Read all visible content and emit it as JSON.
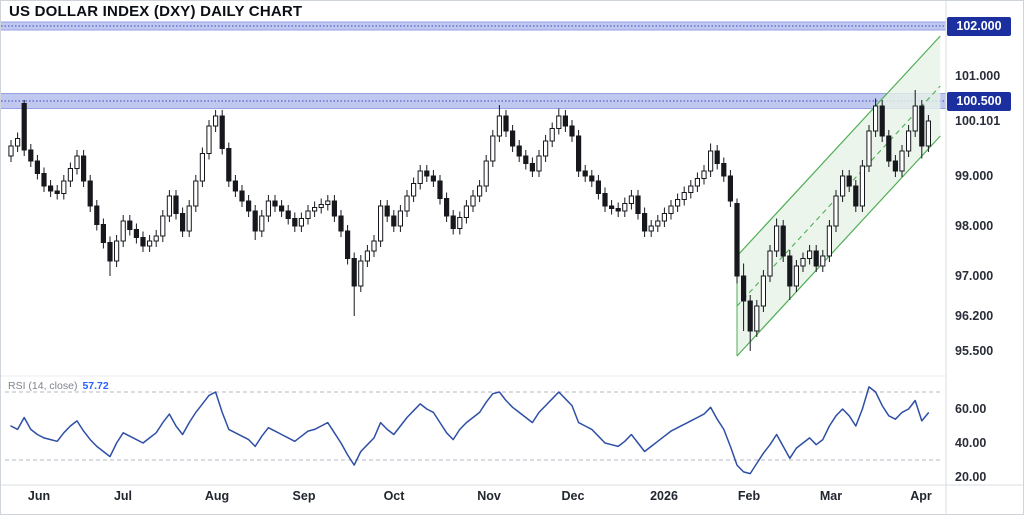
{
  "colors": {
    "background": "#ffffff",
    "candle_outline": "#16181d",
    "candle_up_fill": "#ffffff",
    "candle_down_fill": "#16181d",
    "resistance_band_fill": "#b9c2ee",
    "resistance_band_edge": "#96a2e6",
    "resistance_band_dotted_line": "#5560cc",
    "price_chip_bg": "#1b2f9f",
    "price_chip_text": "#ffffff",
    "channel_fill": "#e7f3e7",
    "channel_line": "#4fae55",
    "rsi_line": "#2e4fa5",
    "rsi_value_text": "#2962ff",
    "rsi_label_text": "#80838e",
    "axis_text": "#2a2e39",
    "dashed_level": "#b7bac4",
    "separator": "#d9dce2",
    "pane_divider": "#ededf1"
  },
  "chart_data": {
    "type": "candlestick",
    "title": "US DOLLAR INDEX (DXY) DAILY CHART",
    "x_axis": {
      "month_labels": [
        {
          "text": "Jun",
          "i": 4.2
        },
        {
          "text": "Jul",
          "i": 17.0
        },
        {
          "text": "Aug",
          "i": 31.2
        },
        {
          "text": "Sep",
          "i": 44.4
        },
        {
          "text": "Oct",
          "i": 58.0
        },
        {
          "text": "Nov",
          "i": 72.4
        },
        {
          "text": "Dec",
          "i": 85.2
        },
        {
          "text": "2026",
          "i": 99.0
        },
        {
          "text": "Feb",
          "i": 111.8
        },
        {
          "text": "Mar",
          "i": 124.2
        },
        {
          "text": "Apr",
          "i": 137.9
        }
      ]
    },
    "price_pane": {
      "ylim": [
        95.1,
        102.5
      ],
      "current_price": 100.101,
      "axis_plain_labels": [
        {
          "text": "101.000",
          "price": 101.0
        },
        {
          "text": "100.101",
          "price": 100.101
        },
        {
          "text": "99.000",
          "price": 99.0
        },
        {
          "text": "98.000",
          "price": 98.0
        },
        {
          "text": "97.000",
          "price": 97.0
        },
        {
          "text": "96.200",
          "price": 96.2
        },
        {
          "text": "95.500",
          "price": 95.5
        }
      ],
      "axis_chip_labels": [
        {
          "text": "102.000",
          "price": 102.0
        },
        {
          "text": "100.500",
          "price": 100.5
        }
      ],
      "resistance_bands": [
        {
          "price": 102.0,
          "half_width": 0.08
        },
        {
          "price": 100.5,
          "half_width": 0.15
        }
      ],
      "ascending_channel": {
        "i_start": 110,
        "i_end": 140.8,
        "lower_price_start": 95.4,
        "lower_price_end": 99.8,
        "price_width": 2.0,
        "midline_dashed": true
      },
      "candles_ohlc": [
        [
          99.4,
          99.72,
          99.28,
          99.6
        ],
        [
          99.6,
          99.87,
          99.48,
          99.75
        ],
        [
          100.45,
          100.52,
          99.4,
          99.52
        ],
        [
          99.52,
          99.64,
          99.18,
          99.3
        ],
        [
          99.3,
          99.42,
          98.93,
          99.05
        ],
        [
          99.05,
          99.17,
          98.68,
          98.8
        ],
        [
          98.8,
          98.92,
          98.58,
          98.7
        ],
        [
          98.7,
          98.82,
          98.53,
          98.65
        ],
        [
          98.65,
          99.02,
          98.53,
          98.9
        ],
        [
          98.9,
          99.27,
          98.78,
          99.15
        ],
        [
          99.15,
          99.52,
          99.03,
          99.4
        ],
        [
          99.4,
          99.52,
          98.78,
          98.9
        ],
        [
          98.9,
          99.02,
          98.28,
          98.4
        ],
        [
          98.4,
          98.52,
          97.91,
          98.03
        ],
        [
          98.03,
          98.15,
          97.55,
          97.67
        ],
        [
          97.67,
          97.79,
          97.0,
          97.3
        ],
        [
          97.3,
          97.82,
          97.18,
          97.7
        ],
        [
          97.7,
          98.22,
          97.58,
          98.1
        ],
        [
          98.1,
          98.22,
          97.81,
          97.93
        ],
        [
          97.93,
          98.05,
          97.65,
          97.77
        ],
        [
          97.77,
          97.89,
          97.48,
          97.6
        ],
        [
          97.6,
          97.82,
          97.48,
          97.7
        ],
        [
          97.7,
          97.92,
          97.58,
          97.8
        ],
        [
          97.8,
          98.32,
          97.68,
          98.2
        ],
        [
          98.2,
          98.72,
          98.08,
          98.6
        ],
        [
          98.6,
          98.72,
          98.13,
          98.25
        ],
        [
          98.25,
          98.37,
          97.78,
          97.9
        ],
        [
          97.9,
          98.52,
          97.78,
          98.4
        ],
        [
          98.4,
          99.02,
          98.28,
          98.9
        ],
        [
          98.9,
          99.57,
          98.78,
          99.45
        ],
        [
          99.45,
          100.12,
          99.33,
          100.0
        ],
        [
          100.0,
          100.32,
          99.88,
          100.2
        ],
        [
          100.2,
          100.32,
          99.43,
          99.55
        ],
        [
          99.55,
          99.67,
          98.78,
          98.9
        ],
        [
          98.9,
          99.02,
          98.58,
          98.7
        ],
        [
          98.7,
          98.82,
          98.38,
          98.5
        ],
        [
          98.5,
          98.62,
          98.18,
          98.3
        ],
        [
          98.3,
          98.42,
          97.72,
          97.9
        ],
        [
          97.9,
          98.32,
          97.78,
          98.2
        ],
        [
          98.2,
          98.62,
          98.08,
          98.5
        ],
        [
          98.5,
          98.62,
          98.28,
          98.4
        ],
        [
          98.4,
          98.52,
          98.18,
          98.3
        ],
        [
          98.3,
          98.42,
          98.03,
          98.15
        ],
        [
          98.15,
          98.27,
          97.88,
          98.0
        ],
        [
          98.0,
          98.27,
          97.88,
          98.15
        ],
        [
          98.15,
          98.42,
          98.03,
          98.3
        ],
        [
          98.3,
          98.49,
          98.18,
          98.37
        ],
        [
          98.37,
          98.55,
          98.25,
          98.43
        ],
        [
          98.43,
          98.62,
          98.31,
          98.5
        ],
        [
          98.5,
          98.62,
          98.08,
          98.2
        ],
        [
          98.2,
          98.32,
          97.78,
          97.9
        ],
        [
          97.9,
          98.02,
          97.23,
          97.35
        ],
        [
          97.35,
          97.47,
          96.2,
          96.8
        ],
        [
          96.8,
          97.42,
          96.68,
          97.3
        ],
        [
          97.3,
          97.62,
          97.18,
          97.5
        ],
        [
          97.5,
          97.82,
          97.38,
          97.7
        ],
        [
          97.7,
          98.52,
          97.58,
          98.4
        ],
        [
          98.4,
          98.52,
          98.08,
          98.2
        ],
        [
          98.2,
          98.32,
          97.88,
          98.0
        ],
        [
          98.0,
          98.42,
          97.88,
          98.3
        ],
        [
          98.3,
          98.72,
          98.18,
          98.6
        ],
        [
          98.6,
          98.97,
          98.48,
          98.85
        ],
        [
          98.85,
          99.22,
          98.73,
          99.1
        ],
        [
          99.1,
          99.22,
          98.88,
          99.0
        ],
        [
          99.0,
          99.12,
          98.78,
          98.9
        ],
        [
          98.9,
          99.02,
          98.43,
          98.55
        ],
        [
          98.55,
          98.67,
          98.08,
          98.2
        ],
        [
          98.2,
          98.32,
          97.83,
          97.95
        ],
        [
          97.95,
          98.29,
          97.83,
          98.17
        ],
        [
          98.17,
          98.52,
          98.05,
          98.4
        ],
        [
          98.4,
          98.72,
          98.28,
          98.6
        ],
        [
          98.6,
          98.92,
          98.48,
          98.8
        ],
        [
          98.8,
          99.42,
          98.68,
          99.3
        ],
        [
          99.3,
          99.92,
          99.18,
          99.8
        ],
        [
          99.8,
          100.42,
          99.68,
          100.2
        ],
        [
          100.2,
          100.32,
          99.78,
          99.9
        ],
        [
          99.9,
          100.02,
          99.48,
          99.6
        ],
        [
          99.6,
          99.72,
          99.28,
          99.4
        ],
        [
          99.4,
          99.52,
          99.13,
          99.25
        ],
        [
          99.25,
          99.37,
          98.98,
          99.1
        ],
        [
          99.1,
          99.52,
          98.98,
          99.4
        ],
        [
          99.4,
          99.82,
          99.28,
          99.7
        ],
        [
          99.7,
          100.07,
          99.58,
          99.95
        ],
        [
          99.95,
          100.35,
          99.83,
          100.2
        ],
        [
          100.2,
          100.32,
          99.88,
          100.0
        ],
        [
          100.0,
          100.12,
          99.68,
          99.8
        ],
        [
          99.8,
          99.92,
          98.98,
          99.1
        ],
        [
          99.1,
          99.22,
          98.88,
          99.0
        ],
        [
          99.0,
          99.12,
          98.78,
          98.9
        ],
        [
          98.9,
          99.02,
          98.53,
          98.65
        ],
        [
          98.65,
          98.77,
          98.28,
          98.4
        ],
        [
          98.4,
          98.52,
          98.23,
          98.35
        ],
        [
          98.35,
          98.47,
          98.18,
          98.3
        ],
        [
          98.3,
          98.57,
          98.18,
          98.45
        ],
        [
          98.45,
          98.72,
          98.33,
          98.6
        ],
        [
          98.6,
          98.72,
          98.13,
          98.25
        ],
        [
          98.25,
          98.37,
          97.78,
          97.9
        ],
        [
          97.9,
          98.12,
          97.78,
          98.0
        ],
        [
          98.0,
          98.22,
          97.88,
          98.1
        ],
        [
          98.1,
          98.37,
          97.98,
          98.25
        ],
        [
          98.25,
          98.52,
          98.13,
          98.4
        ],
        [
          98.4,
          98.65,
          98.28,
          98.53
        ],
        [
          98.53,
          98.79,
          98.41,
          98.67
        ],
        [
          98.67,
          98.92,
          98.55,
          98.8
        ],
        [
          98.8,
          99.07,
          98.68,
          98.95
        ],
        [
          98.95,
          99.22,
          98.83,
          99.1
        ],
        [
          99.1,
          99.65,
          98.98,
          99.5
        ],
        [
          99.5,
          99.62,
          99.13,
          99.25
        ],
        [
          99.25,
          99.37,
          98.88,
          99.0
        ],
        [
          99.0,
          99.12,
          98.38,
          98.5
        ],
        [
          98.45,
          98.55,
          96.85,
          97.0
        ],
        [
          97.0,
          97.25,
          95.9,
          96.5
        ],
        [
          96.5,
          96.62,
          95.5,
          95.9
        ],
        [
          95.9,
          96.52,
          95.78,
          96.4
        ],
        [
          96.4,
          97.12,
          96.28,
          97.0
        ],
        [
          97.0,
          97.62,
          96.88,
          97.5
        ],
        [
          97.5,
          98.15,
          97.38,
          98.0
        ],
        [
          98.0,
          98.12,
          97.28,
          97.4
        ],
        [
          97.4,
          97.52,
          96.52,
          96.8
        ],
        [
          96.8,
          97.32,
          96.68,
          97.2
        ],
        [
          97.2,
          97.47,
          97.08,
          97.35
        ],
        [
          97.35,
          97.62,
          97.23,
          97.5
        ],
        [
          97.5,
          97.62,
          97.08,
          97.2
        ],
        [
          97.2,
          97.52,
          97.08,
          97.4
        ],
        [
          97.4,
          98.12,
          97.28,
          98.0
        ],
        [
          98.0,
          98.72,
          97.88,
          98.6
        ],
        [
          98.6,
          99.12,
          98.48,
          99.0
        ],
        [
          99.0,
          99.12,
          98.68,
          98.8
        ],
        [
          98.8,
          98.92,
          98.28,
          98.4
        ],
        [
          98.4,
          99.32,
          98.28,
          99.2
        ],
        [
          99.2,
          100.02,
          99.08,
          99.9
        ],
        [
          99.9,
          100.55,
          99.78,
          100.4
        ],
        [
          100.4,
          100.52,
          99.68,
          99.8
        ],
        [
          99.8,
          99.92,
          99.18,
          99.3
        ],
        [
          99.3,
          99.42,
          98.98,
          99.1
        ],
        [
          99.1,
          99.62,
          98.98,
          99.5
        ],
        [
          99.5,
          100.02,
          99.38,
          99.9
        ],
        [
          99.9,
          100.72,
          99.78,
          100.4
        ],
        [
          100.4,
          100.52,
          99.35,
          99.6
        ],
        [
          99.6,
          100.22,
          99.48,
          100.1
        ]
      ]
    },
    "rsi_pane": {
      "label": "RSI (14, close)",
      "value_text": "57.72",
      "last_value": 57.72,
      "dashed_levels": [
        70,
        30
      ],
      "axis_labels": [
        {
          "text": "60.00",
          "v": 60
        },
        {
          "text": "40.00",
          "v": 40
        },
        {
          "text": "20.00",
          "v": 20
        }
      ],
      "values": [
        50,
        48,
        55,
        48,
        45,
        43,
        42,
        41,
        46,
        50,
        53,
        47,
        42,
        38,
        35,
        32,
        40,
        46,
        44,
        42,
        40,
        43,
        46,
        52,
        57,
        50,
        45,
        52,
        58,
        63,
        68,
        70,
        58,
        48,
        46,
        44,
        42,
        38,
        44,
        49,
        47,
        45,
        43,
        41,
        44,
        47,
        48,
        50,
        52,
        46,
        40,
        33,
        27,
        35,
        39,
        43,
        52,
        48,
        45,
        50,
        55,
        59,
        63,
        60,
        58,
        52,
        46,
        42,
        48,
        52,
        55,
        58,
        64,
        69,
        70,
        65,
        61,
        58,
        55,
        52,
        58,
        62,
        66,
        70,
        66,
        62,
        52,
        50,
        48,
        44,
        40,
        39,
        38,
        41,
        45,
        40,
        35,
        38,
        41,
        44,
        47,
        49,
        51,
        53,
        55,
        57,
        61,
        54,
        48,
        38,
        27,
        23,
        22,
        28,
        34,
        39,
        45,
        38,
        31,
        37,
        40,
        43,
        39,
        42,
        50,
        56,
        60,
        56,
        50,
        60,
        73,
        70,
        62,
        56,
        54,
        58,
        60,
        65,
        53,
        57.72
      ]
    }
  }
}
